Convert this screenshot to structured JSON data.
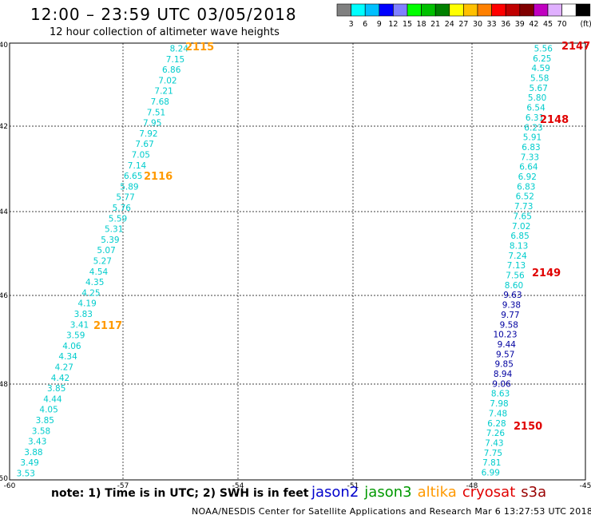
{
  "title": "12:00 – 23:59 UTC 03/05/2018",
  "subtitle": "12 hour collection of altimeter wave heights",
  "color_scale": {
    "unit_label": "(ft)",
    "ticks": [
      "3",
      "6",
      "9",
      "12",
      "15",
      "18",
      "21",
      "24",
      "27",
      "30",
      "33",
      "36",
      "39",
      "42",
      "45",
      "70"
    ],
    "colors": [
      "#808080",
      "#00ffff",
      "#00c0ff",
      "#0000ff",
      "#8080ff",
      "#00ff00",
      "#00c000",
      "#008000",
      "#ffff00",
      "#ffc000",
      "#ff8000",
      "#ff0000",
      "#c00000",
      "#800000",
      "#c000c0",
      "#e0b0ff",
      "#ffffff",
      "#000000"
    ]
  },
  "axes": {
    "x_ticks": [
      "-60",
      "-57",
      "-54",
      "-51",
      "-48",
      "-45"
    ],
    "y_ticks": [
      "-40",
      "-42",
      "-44",
      "-46",
      "-48",
      "-50"
    ]
  },
  "track_colors": {
    "cyan": "#00cccc",
    "blue": "#0000a0",
    "altika_time": "#ff9900",
    "cryosat_time": "#e00000"
  },
  "tracks": [
    {
      "name": "altika-west",
      "values": [
        "8.24",
        "7.15",
        "6.86",
        "7.02",
        "7.21",
        "7.68",
        "7.51",
        "7.95",
        "7.92",
        "7.67",
        "7.05",
        "7.14",
        "6.65",
        "5.89",
        "5.77",
        "5.76",
        "5.59",
        "5.31",
        "5.39",
        "5.07",
        "5.27",
        "4.54",
        "4.35",
        "4.25",
        "4.19",
        "3.83",
        "3.41",
        "3.59",
        "4.06",
        "4.34",
        "4.27",
        "4.42",
        "3.85",
        "4.44",
        "4.05",
        "3.85",
        "3.58",
        "3.43",
        "3.88",
        "3.49",
        "3.53"
      ],
      "colors": [
        "cyan",
        "cyan",
        "cyan",
        "cyan",
        "cyan",
        "cyan",
        "cyan",
        "cyan",
        "cyan",
        "cyan",
        "cyan",
        "cyan",
        "cyan",
        "cyan",
        "cyan",
        "cyan",
        "cyan",
        "cyan",
        "cyan",
        "cyan",
        "cyan",
        "cyan",
        "cyan",
        "cyan",
        "cyan",
        "cyan",
        "cyan",
        "cyan",
        "cyan",
        "cyan",
        "cyan",
        "cyan",
        "cyan",
        "cyan",
        "cyan",
        "cyan",
        "cyan",
        "cyan",
        "cyan",
        "cyan",
        "cyan"
      ]
    },
    {
      "name": "cryosat-east",
      "values": [
        "5.56",
        "6.25",
        "4.59",
        "5.58",
        "5.67",
        "5.80",
        "6.54",
        "6.31",
        "6.23",
        "5.91",
        "6.83",
        "7.33",
        "6.64",
        "6.92",
        "6.83",
        "6.52",
        "7.73",
        "7.65",
        "7.02",
        "6.85",
        "8.13",
        "7.24",
        "7.13",
        "7.56",
        "8.60",
        "9.63",
        "9.38",
        "9.77",
        "9.58",
        "10.23",
        "9.44",
        "9.57",
        "9.85",
        "8.94",
        "9.06",
        "8.63",
        "7.98",
        "7.48",
        "6.28",
        "7.26",
        "7.43",
        "7.75",
        "7.81",
        "6.99"
      ],
      "colors": [
        "cyan",
        "cyan",
        "cyan",
        "cyan",
        "cyan",
        "cyan",
        "cyan",
        "cyan",
        "cyan",
        "cyan",
        "cyan",
        "cyan",
        "cyan",
        "cyan",
        "cyan",
        "cyan",
        "cyan",
        "cyan",
        "cyan",
        "cyan",
        "cyan",
        "cyan",
        "cyan",
        "cyan",
        "cyan",
        "blue",
        "blue",
        "blue",
        "blue",
        "blue",
        "blue",
        "blue",
        "blue",
        "blue",
        "blue",
        "cyan",
        "cyan",
        "cyan",
        "cyan",
        "cyan",
        "cyan",
        "cyan",
        "cyan",
        "cyan"
      ]
    }
  ],
  "time_labels": [
    {
      "text": "2115",
      "satellite": "altika"
    },
    {
      "text": "2116",
      "satellite": "altika"
    },
    {
      "text": "2117",
      "satellite": "altika"
    },
    {
      "text": "2147",
      "satellite": "cryosat"
    },
    {
      "text": "2148",
      "satellite": "cryosat"
    },
    {
      "text": "2149",
      "satellite": "cryosat"
    },
    {
      "text": "2150",
      "satellite": "cryosat"
    }
  ],
  "footer": {
    "note": "note:  1) Time is in UTC;  2) SWH is in feet",
    "credit": "NOAA/NESDIS Center for Satellite Applications and Research     Mar  6 13:27:53 UTC 2018"
  },
  "legend": [
    {
      "name": "jason2",
      "color": "#0000cc"
    },
    {
      "name": "jason3",
      "color": "#009900"
    },
    {
      "name": "altika",
      "color": "#ff9900"
    },
    {
      "name": "cryosat",
      "color": "#e00000"
    },
    {
      "name": "s3a",
      "color": "#990000"
    }
  ]
}
